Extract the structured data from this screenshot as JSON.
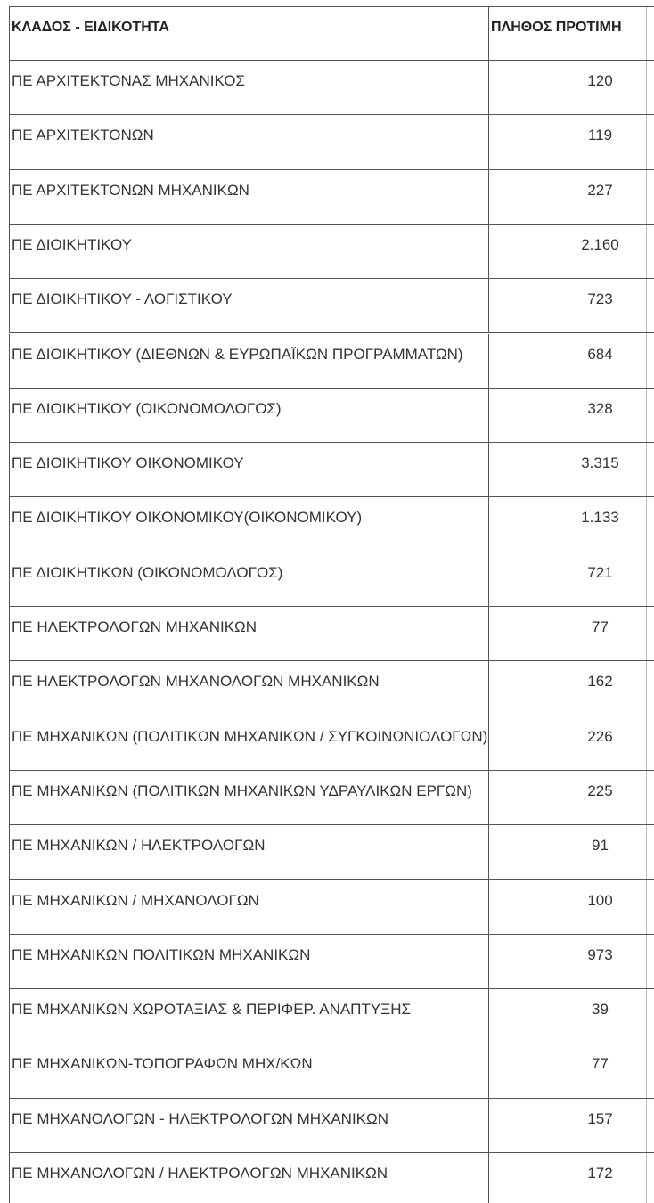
{
  "table": {
    "header": [
      "ΚΛΑΔΟΣ - ΕΙΔΙΚΟΤΗΤΑ",
      "ΠΛΗΘΟΣ ΠΡΟΤΙΜΗ"
    ],
    "rows": [
      [
        "ΠΕ ΑΡΧΙΤΕΚΤΟΝΑΣ ΜΗΧΑΝΙΚΟΣ",
        "120"
      ],
      [
        "ΠΕ ΑΡΧΙΤΕΚΤΟΝΩΝ",
        "119"
      ],
      [
        "ΠΕ ΑΡΧΙΤΕΚΤΟΝΩΝ ΜΗΧΑΝΙΚΩΝ",
        "227"
      ],
      [
        "ΠΕ ΔΙΟΙΚΗΤΙΚΟΥ",
        "2.160"
      ],
      [
        "ΠΕ ΔΙΟΙΚΗΤΙΚΟΥ - ΛΟΓΙΣΤΙΚΟΥ",
        "723"
      ],
      [
        "ΠΕ ΔΙΟΙΚΗΤΙΚΟΥ (ΔΙΕΘΝΩΝ & ΕΥΡΩΠΑΪΚΩΝ ΠΡΟΓΡΑΜΜΑΤΩΝ)",
        "684"
      ],
      [
        "ΠΕ ΔΙΟΙΚΗΤΙΚΟΥ (ΟΙΚΟΝΟΜΟΛΟΓΟΣ)",
        "328"
      ],
      [
        "ΠΕ ΔΙΟΙΚΗΤΙΚΟΥ ΟΙΚΟΝΟΜΙΚΟΥ",
        "3.315"
      ],
      [
        "ΠΕ ΔΙΟΙΚΗΤΙΚΟΥ ΟΙΚΟΝΟΜΙΚΟΥ(ΟΙΚΟΝΟΜΙΚΟΥ)",
        "1.133"
      ],
      [
        "ΠΕ ΔΙΟΙΚΗΤΙΚΩΝ (ΟΙΚΟΝΟΜΟΛΟΓΟΣ)",
        "721"
      ],
      [
        "ΠΕ ΗΛΕΚΤΡΟΛΟΓΩΝ ΜΗΧΑΝΙΚΩΝ",
        "77"
      ],
      [
        "ΠΕ ΗΛΕΚΤΡΟΛΟΓΩΝ ΜΗΧΑΝΟΛΟΓΩΝ ΜΗΧΑΝΙΚΩΝ",
        "162"
      ],
      [
        "ΠΕ ΜΗΧΑΝΙΚΩΝ (ΠΟΛΙΤΙΚΩΝ ΜΗΧΑΝΙΚΩΝ / ΣΥΓΚΟΙΝΩΝΙΟΛΟΓΩΝ)",
        "226"
      ],
      [
        "ΠΕ ΜΗΧΑΝΙΚΩΝ (ΠΟΛΙΤΙΚΩΝ ΜΗΧΑΝΙΚΩΝ ΥΔΡΑΥΛΙΚΩΝ ΕΡΓΩΝ)",
        "225"
      ],
      [
        "ΠΕ ΜΗΧΑΝΙΚΩΝ / ΗΛΕΚΤΡΟΛΟΓΩΝ",
        "91"
      ],
      [
        "ΠΕ ΜΗΧΑΝΙΚΩΝ / ΜΗΧΑΝΟΛΟΓΩΝ",
        "100"
      ],
      [
        "ΠΕ ΜΗΧΑΝΙΚΩΝ ΠΟΛΙΤΙΚΩΝ ΜΗΧΑΝΙΚΩΝ",
        "973"
      ],
      [
        "ΠΕ ΜΗΧΑΝΙΚΩΝ ΧΩΡΟΤΑΞΙΑΣ & ΠΕΡΙΦΕΡ. ΑΝΑΠΤΥΞΗΣ",
        "39"
      ],
      [
        "ΠΕ ΜΗΧΑΝΙΚΩΝ-ΤΟΠΟΓΡΑΦΩΝ ΜΗΧ/ΚΩΝ",
        "77"
      ],
      [
        "ΠΕ ΜΗΧΑΝΟΛΟΓΩΝ - ΗΛΕΚΤΡΟΛΟΓΩΝ ΜΗΧΑΝΙΚΩΝ",
        "157"
      ],
      [
        "ΠΕ ΜΗΧΑΝΟΛΟΓΩΝ / ΗΛΕΚΤΡΟΛΟΓΩΝ ΜΗΧΑΝΙΚΩΝ",
        "172"
      ]
    ]
  }
}
